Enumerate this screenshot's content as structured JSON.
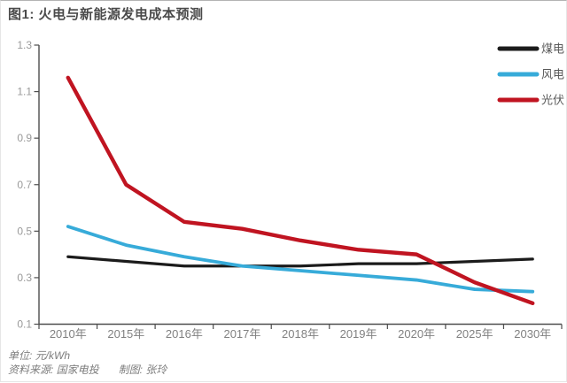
{
  "header": {
    "title": "图1: 火电与新能源发电成本预测"
  },
  "footer": {
    "unit": "单位: 元/kWh",
    "source": "资料来源: 国家电投",
    "author": "制图: 张玲"
  },
  "colors": {
    "coal": "#1b1b1b",
    "wind": "#37abd9",
    "pv": "#c01421",
    "axis": "#4d4d4d",
    "y_tick_label": "#999999",
    "x_tick_label": "#818181",
    "legend_label": "#595959"
  },
  "chart_data": {
    "type": "line",
    "title": "图1: 火电与新能源发电成本预测",
    "xlabel": "",
    "ylabel": "元/kWh",
    "categories": [
      "2010年",
      "2015年",
      "2016年",
      "2017年",
      "2018年",
      "2019年",
      "2020年",
      "2025年",
      "2030年"
    ],
    "series": [
      {
        "name": "煤电",
        "color": "#1b1b1b",
        "values": [
          0.39,
          0.37,
          0.35,
          0.35,
          0.35,
          0.36,
          0.36,
          0.37,
          0.38
        ]
      },
      {
        "name": "风电",
        "color": "#37abd9",
        "values": [
          0.52,
          0.44,
          0.39,
          0.35,
          0.33,
          0.31,
          0.29,
          0.25,
          0.24
        ]
      },
      {
        "name": "光伏",
        "color": "#c01421",
        "values": [
          1.16,
          0.7,
          0.54,
          0.51,
          0.46,
          0.42,
          0.4,
          0.28,
          0.19
        ]
      }
    ],
    "ylim": [
      0.1,
      1.3
    ],
    "yticks": [
      0.1,
      0.3,
      0.5,
      0.7,
      0.9,
      1.1,
      1.3
    ],
    "grid": false,
    "legend_position": "top-right"
  }
}
